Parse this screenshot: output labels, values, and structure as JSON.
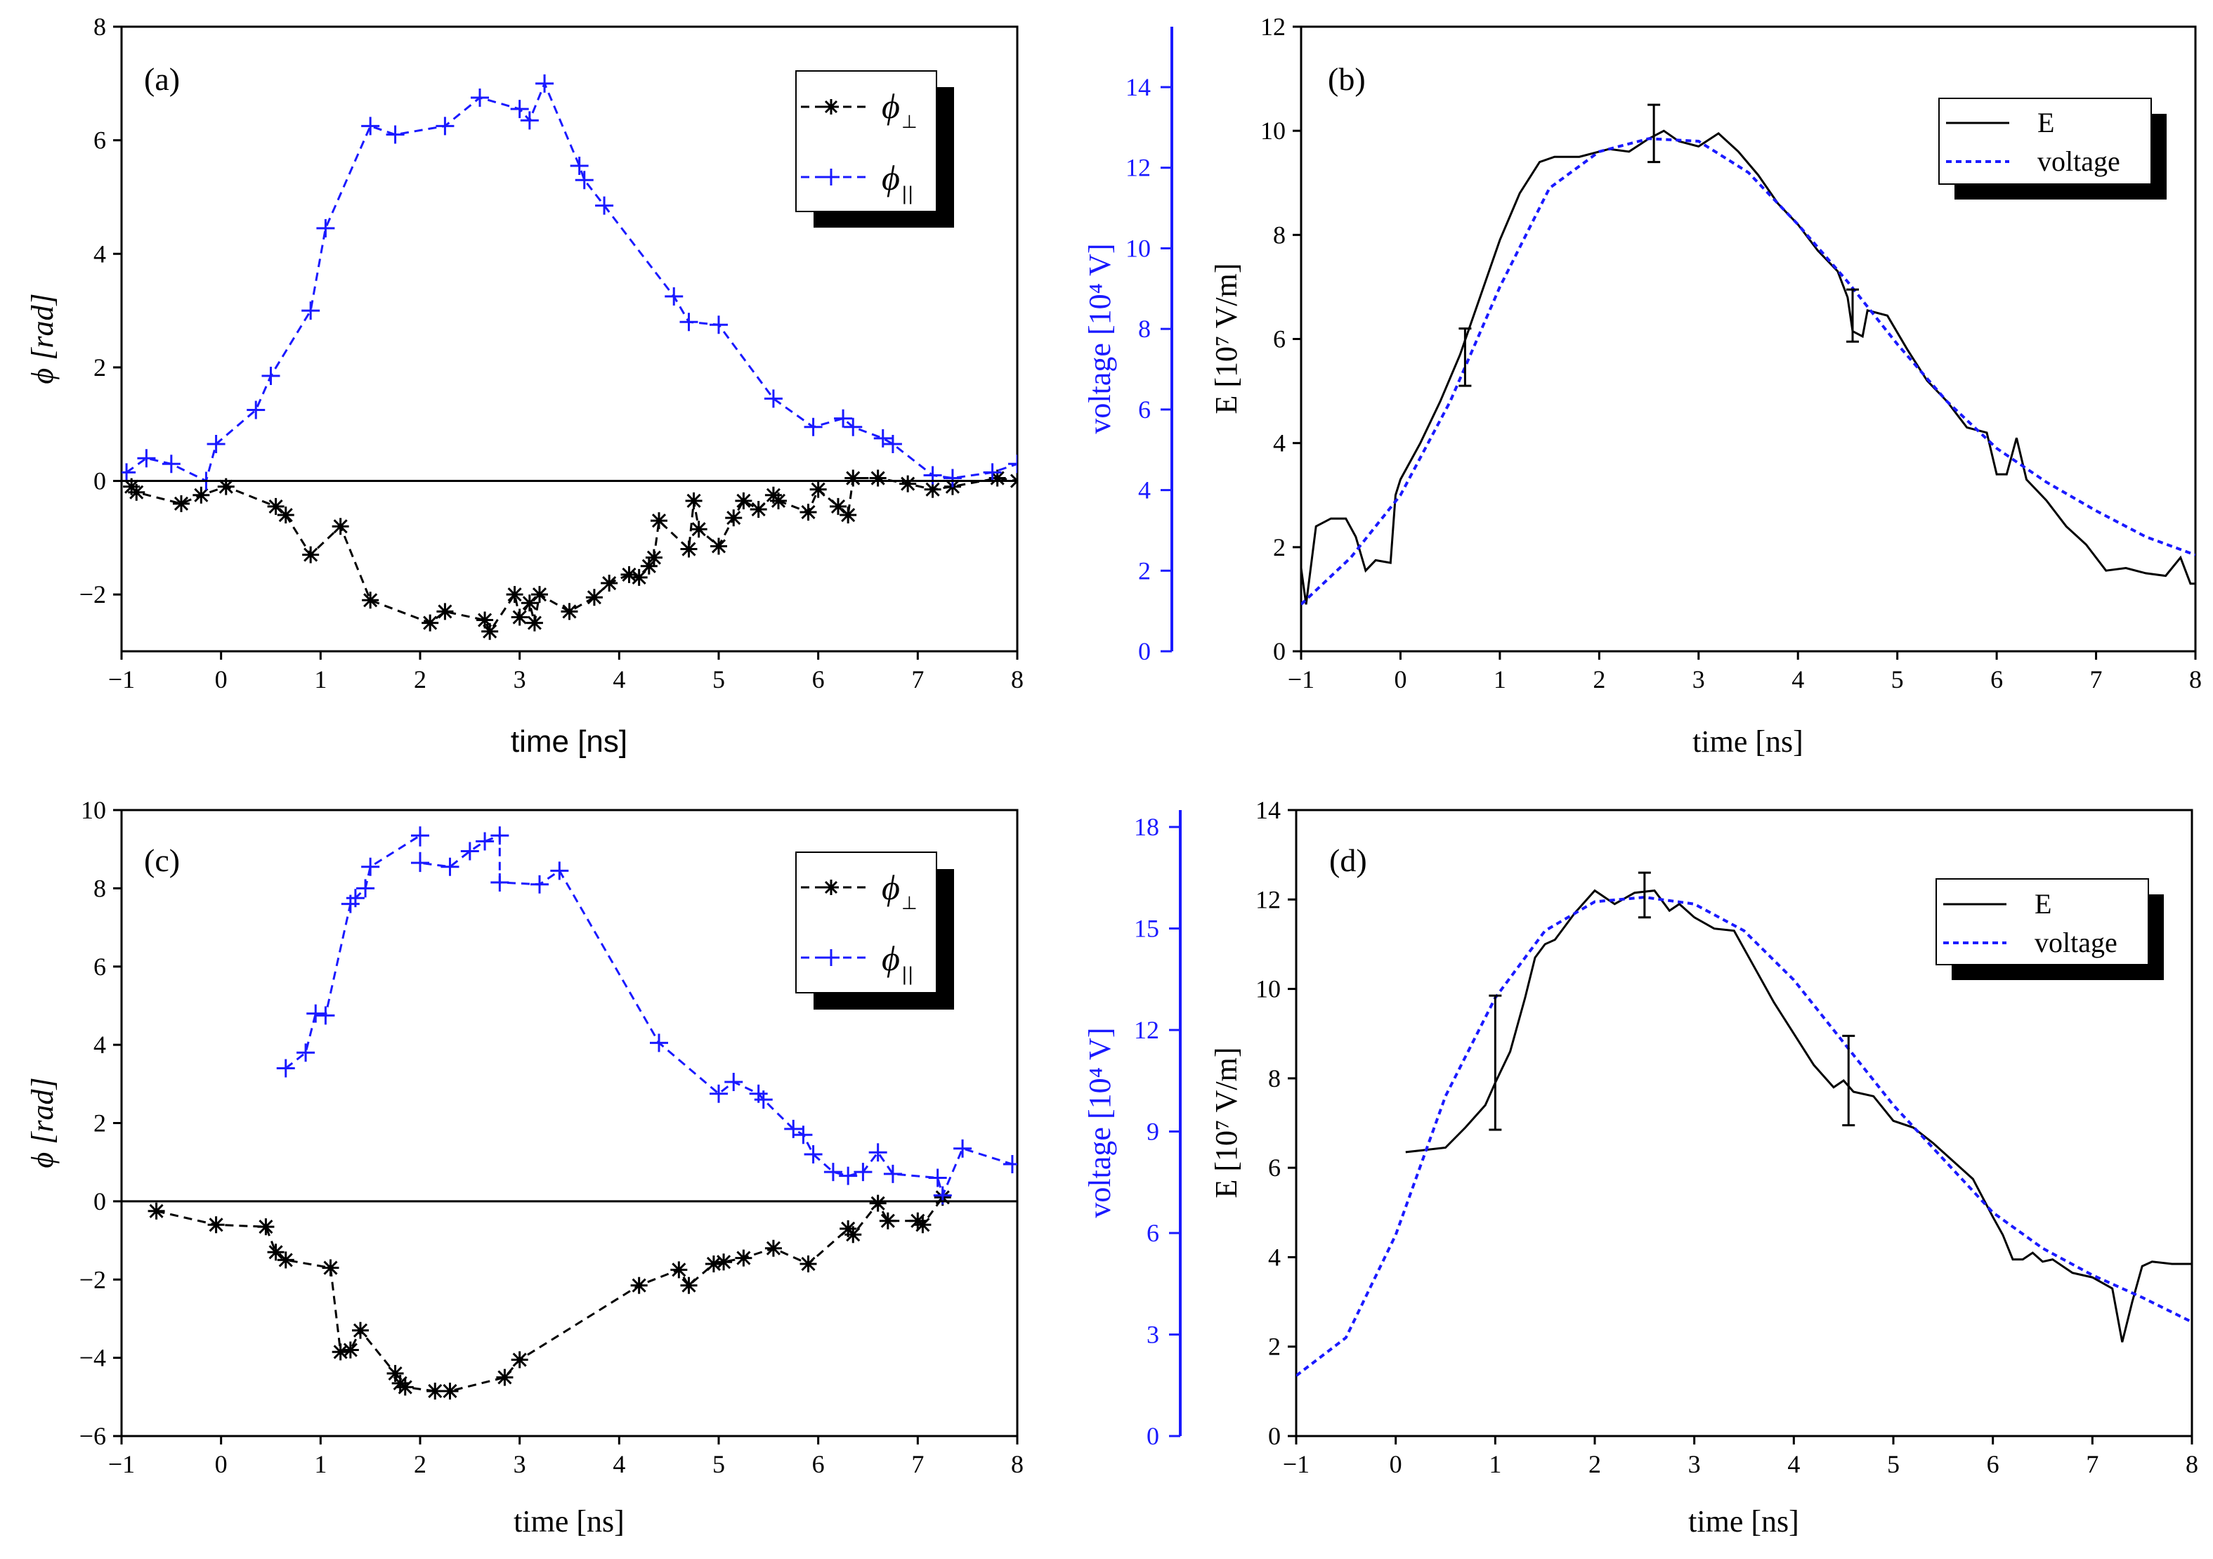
{
  "colors": {
    "black": "#000000",
    "blue": "#1a1aff"
  },
  "chart_data": [
    {
      "id": "a",
      "type": "scatter",
      "panel_label": "(a)",
      "xlabel": "time [ns]",
      "ylabel": "ϕ [rad]",
      "xlim": [
        -1,
        8
      ],
      "ylim": [
        -3,
        8
      ],
      "xticks": [
        -1,
        0,
        1,
        2,
        3,
        4,
        5,
        6,
        7,
        8
      ],
      "yticks": [
        -2,
        0,
        2,
        4,
        6,
        8
      ],
      "xtick_labels": [
        "−1",
        "0",
        "1",
        "2",
        "3",
        "4",
        "5",
        "6",
        "7",
        "8"
      ],
      "ytick_labels": [
        "−2",
        "0",
        "2",
        "4",
        "6",
        "8"
      ],
      "y2label": "voltage [10⁴ V]",
      "y2lim": [
        0,
        15.5
      ],
      "y2ticks": [
        0,
        2,
        4,
        6,
        8,
        10,
        12,
        14
      ],
      "y2tick_labels": [
        "0",
        "2",
        "4",
        "6",
        "8",
        "10",
        "12",
        "14"
      ],
      "legend": [
        {
          "symbol": "ϕ",
          "sub": "⊥",
          "marker": "star",
          "color": "#000000"
        },
        {
          "symbol": "ϕ",
          "sub": "||",
          "marker": "plus",
          "color": "#1a1aff"
        }
      ],
      "series": [
        {
          "name": "phi_perp",
          "color": "#000000",
          "marker": "star",
          "x": [
            -0.9,
            -0.85,
            -0.4,
            -0.2,
            0.05,
            0.55,
            0.65,
            0.9,
            1.2,
            1.5,
            2.1,
            2.25,
            2.65,
            2.7,
            2.95,
            3.0,
            3.1,
            3.15,
            3.2,
            3.5,
            3.75,
            3.9,
            4.1,
            4.2,
            4.3,
            4.35,
            4.4,
            4.7,
            4.75,
            4.8,
            5.0,
            5.15,
            5.25,
            5.4,
            5.55,
            5.6,
            5.9,
            6.0,
            6.2,
            6.3,
            6.35,
            6.6,
            6.9,
            7.15,
            7.35,
            7.8,
            8.0
          ],
          "y": [
            -0.1,
            -0.2,
            -0.4,
            -0.25,
            -0.1,
            -0.45,
            -0.6,
            -1.3,
            -0.8,
            -2.1,
            -2.5,
            -2.3,
            -2.45,
            -2.65,
            -2.0,
            -2.4,
            -2.15,
            -2.5,
            -2.0,
            -2.3,
            -2.05,
            -1.8,
            -1.65,
            -1.7,
            -1.5,
            -1.35,
            -0.7,
            -1.2,
            -0.35,
            -0.85,
            -1.15,
            -0.65,
            -0.35,
            -0.5,
            -0.25,
            -0.35,
            -0.55,
            -0.15,
            -0.45,
            -0.6,
            0.05,
            0.05,
            -0.05,
            -0.15,
            -0.1,
            0.05,
            0.0
          ]
        },
        {
          "name": "phi_par",
          "color": "#1a1aff",
          "marker": "plus",
          "x": [
            -0.95,
            -0.75,
            -0.5,
            -0.15,
            -0.05,
            0.35,
            0.5,
            0.9,
            1.05,
            1.5,
            1.75,
            2.25,
            2.6,
            3.0,
            3.1,
            3.25,
            3.6,
            3.65,
            3.85,
            4.55,
            4.7,
            5.0,
            5.55,
            5.95,
            6.25,
            6.35,
            6.65,
            6.75,
            7.15,
            7.35,
            7.75,
            8.0
          ],
          "y": [
            0.15,
            0.4,
            0.3,
            0.0,
            0.65,
            1.25,
            1.85,
            3.0,
            4.45,
            6.25,
            6.1,
            6.25,
            6.75,
            6.55,
            6.35,
            7.0,
            5.55,
            5.3,
            4.85,
            3.25,
            2.8,
            2.75,
            1.45,
            0.95,
            1.1,
            0.95,
            0.75,
            0.65,
            0.1,
            0.05,
            0.15,
            0.3
          ]
        },
        {
          "name": "zero_line",
          "color": "#000000",
          "x": [
            -1,
            8
          ],
          "y": [
            0,
            0
          ]
        }
      ]
    },
    {
      "id": "b",
      "type": "line",
      "panel_label": "(b)",
      "xlabel": "time [ns]",
      "ylabel": "E [10⁷ V/m]",
      "xlim": [
        -1,
        8
      ],
      "ylim": [
        0,
        12
      ],
      "xticks": [
        -1,
        0,
        1,
        2,
        3,
        4,
        5,
        6,
        7,
        8
      ],
      "yticks": [
        0,
        2,
        4,
        6,
        8,
        10,
        12
      ],
      "xtick_labels": [
        "−1",
        "0",
        "1",
        "2",
        "3",
        "4",
        "5",
        "6",
        "7",
        "8"
      ],
      "ytick_labels": [
        "0",
        "2",
        "4",
        "6",
        "8",
        "10",
        "12"
      ],
      "legend": [
        {
          "label": "E",
          "style": "solid",
          "color": "#000000"
        },
        {
          "label": "voltage",
          "style": "dotted",
          "color": "#1a1aff"
        }
      ],
      "series": [
        {
          "name": "E",
          "color": "#000000",
          "style": "solid",
          "x": [
            -1.0,
            -0.95,
            -0.85,
            -0.7,
            -0.55,
            -0.45,
            -0.35,
            -0.25,
            -0.1,
            -0.05,
            0.0,
            0.2,
            0.4,
            0.6,
            0.8,
            1.0,
            1.2,
            1.4,
            1.55,
            1.8,
            2.1,
            2.3,
            2.5,
            2.65,
            2.8,
            3.0,
            3.2,
            3.4,
            3.6,
            3.8,
            4.0,
            4.2,
            4.4,
            4.5,
            4.55,
            4.65,
            4.7,
            4.9,
            5.1,
            5.3,
            5.5,
            5.7,
            5.9,
            6.0,
            6.1,
            6.2,
            6.3,
            6.5,
            6.7,
            6.9,
            7.1,
            7.3,
            7.5,
            7.7,
            7.85,
            7.95,
            8.0
          ],
          "y": [
            1.6,
            0.9,
            2.4,
            2.55,
            2.55,
            2.2,
            1.55,
            1.75,
            1.7,
            3.0,
            3.3,
            4.0,
            4.8,
            5.7,
            6.8,
            7.9,
            8.8,
            9.4,
            9.5,
            9.5,
            9.65,
            9.6,
            9.85,
            10.0,
            9.8,
            9.7,
            9.95,
            9.6,
            9.15,
            8.6,
            8.2,
            7.7,
            7.3,
            6.8,
            6.15,
            6.05,
            6.55,
            6.45,
            5.8,
            5.2,
            4.8,
            4.3,
            4.2,
            3.4,
            3.4,
            4.1,
            3.3,
            2.9,
            2.4,
            2.05,
            1.55,
            1.6,
            1.5,
            1.45,
            1.8,
            1.3,
            1.3
          ]
        },
        {
          "name": "voltage",
          "color": "#1a1aff",
          "style": "dotted",
          "x": [
            -1.0,
            -0.5,
            0.0,
            0.5,
            1.0,
            1.5,
            2.0,
            2.5,
            3.0,
            3.5,
            4.0,
            4.5,
            5.0,
            5.5,
            6.0,
            6.5,
            7.0,
            7.5,
            8.0
          ],
          "y": [
            0.9,
            1.8,
            3.0,
            4.8,
            7.0,
            8.9,
            9.6,
            9.85,
            9.8,
            9.2,
            8.2,
            7.1,
            5.9,
            4.8,
            3.9,
            3.25,
            2.7,
            2.2,
            1.85
          ]
        }
      ],
      "error_bars": [
        {
          "x": 0.65,
          "y": 5.65,
          "low": 5.1,
          "high": 6.2
        },
        {
          "x": 2.55,
          "y": 9.95,
          "low": 9.4,
          "high": 10.5
        },
        {
          "x": 4.55,
          "y": 6.45,
          "low": 5.95,
          "high": 6.95
        }
      ]
    },
    {
      "id": "c",
      "type": "scatter",
      "panel_label": "(c)",
      "xlabel": "time [ns]",
      "ylabel": "ϕ [rad]",
      "xlim": [
        -1,
        8
      ],
      "ylim": [
        -6,
        10
      ],
      "xticks": [
        -1,
        0,
        1,
        2,
        3,
        4,
        5,
        6,
        7,
        8
      ],
      "yticks": [
        -6,
        -4,
        -2,
        0,
        2,
        4,
        6,
        8,
        10
      ],
      "xtick_labels": [
        "−1",
        "0",
        "1",
        "2",
        "3",
        "4",
        "5",
        "6",
        "7",
        "8"
      ],
      "ytick_labels": [
        "−6",
        "−4",
        "−2",
        "0",
        "2",
        "4",
        "6",
        "8",
        "10"
      ],
      "y2label": "voltage [10⁴ V]",
      "y2lim": [
        0,
        18.5
      ],
      "y2ticks": [
        0,
        3,
        6,
        9,
        12,
        15,
        18
      ],
      "y2tick_labels": [
        "0",
        "3",
        "6",
        "9",
        "12",
        "15",
        "18"
      ],
      "legend": [
        {
          "symbol": "ϕ",
          "sub": "⊥",
          "marker": "star",
          "color": "#000000"
        },
        {
          "symbol": "ϕ",
          "sub": "||",
          "marker": "plus",
          "color": "#1a1aff"
        }
      ],
      "series": [
        {
          "name": "phi_perp",
          "color": "#000000",
          "marker": "star",
          "x": [
            -0.65,
            -0.05,
            0.45,
            0.55,
            0.65,
            1.1,
            1.2,
            1.3,
            1.4,
            1.75,
            1.8,
            1.85,
            2.15,
            2.3,
            2.85,
            3.0,
            4.2,
            4.6,
            4.7,
            4.95,
            5.05,
            5.25,
            5.55,
            5.9,
            6.3,
            6.35,
            6.6,
            6.7,
            7.0,
            7.05,
            7.25
          ],
          "y": [
            -0.25,
            -0.6,
            -0.65,
            -1.3,
            -1.5,
            -1.7,
            -3.85,
            -3.8,
            -3.3,
            -4.4,
            -4.65,
            -4.75,
            -4.85,
            -4.85,
            -4.5,
            -4.05,
            -2.15,
            -1.75,
            -2.15,
            -1.6,
            -1.55,
            -1.45,
            -1.2,
            -1.6,
            -0.7,
            -0.85,
            -0.05,
            -0.5,
            -0.5,
            -0.6,
            0.1
          ]
        },
        {
          "name": "phi_par",
          "color": "#1a1aff",
          "marker": "plus",
          "x": [
            0.65,
            0.85,
            0.95,
            1.05,
            1.3,
            1.35,
            1.45,
            1.5,
            2.0,
            2.0,
            2.3,
            2.5,
            2.65,
            2.8,
            2.8,
            3.2,
            3.4,
            4.4,
            5.0,
            5.15,
            5.4,
            5.45,
            5.75,
            5.85,
            5.95,
            6.15,
            6.3,
            6.45,
            6.6,
            6.75,
            7.2,
            7.25,
            7.45,
            7.95
          ],
          "y": [
            3.4,
            3.8,
            4.8,
            4.75,
            7.6,
            7.75,
            8.0,
            8.55,
            9.35,
            8.65,
            8.55,
            8.95,
            9.2,
            9.35,
            8.15,
            8.1,
            8.45,
            4.05,
            2.75,
            3.05,
            2.75,
            2.6,
            1.85,
            1.7,
            1.2,
            0.75,
            0.65,
            0.75,
            1.25,
            0.7,
            0.6,
            0.15,
            1.35,
            0.95
          ]
        },
        {
          "name": "zero_line",
          "color": "#000000",
          "x": [
            -1,
            8
          ],
          "y": [
            0,
            0
          ]
        }
      ]
    },
    {
      "id": "d",
      "type": "line",
      "panel_label": "(d)",
      "xlabel": "time [ns]",
      "ylabel": "E [10⁷ V/m]",
      "xlim": [
        -1,
        8
      ],
      "ylim": [
        0,
        14
      ],
      "xticks": [
        -1,
        0,
        1,
        2,
        3,
        4,
        5,
        6,
        7,
        8
      ],
      "yticks": [
        0,
        2,
        4,
        6,
        8,
        10,
        12,
        14
      ],
      "xtick_labels": [
        "−1",
        "0",
        "1",
        "2",
        "3",
        "4",
        "5",
        "6",
        "7",
        "8"
      ],
      "ytick_labels": [
        "0",
        "2",
        "4",
        "6",
        "8",
        "10",
        "12",
        "14"
      ],
      "legend": [
        {
          "label": "E",
          "style": "solid",
          "color": "#000000"
        },
        {
          "label": "voltage",
          "style": "dotted",
          "color": "#1a1aff"
        }
      ],
      "series": [
        {
          "name": "E",
          "color": "#000000",
          "style": "solid",
          "x": [
            0.1,
            0.3,
            0.5,
            0.7,
            0.9,
            1.0,
            1.15,
            1.3,
            1.4,
            1.5,
            1.6,
            1.8,
            2.0,
            2.2,
            2.4,
            2.6,
            2.75,
            2.85,
            3.0,
            3.2,
            3.4,
            3.6,
            3.8,
            4.0,
            4.2,
            4.4,
            4.5,
            4.6,
            4.8,
            5.0,
            5.2,
            5.4,
            5.6,
            5.8,
            6.0,
            6.1,
            6.2,
            6.3,
            6.4,
            6.5,
            6.6,
            6.8,
            7.0,
            7.2,
            7.3,
            7.4,
            7.5,
            7.6,
            7.8,
            8.0
          ],
          "y": [
            6.35,
            6.4,
            6.45,
            6.9,
            7.4,
            7.9,
            8.6,
            9.8,
            10.7,
            11.0,
            11.1,
            11.7,
            12.2,
            11.9,
            12.15,
            12.2,
            11.75,
            11.9,
            11.6,
            11.35,
            11.3,
            10.5,
            9.7,
            9.0,
            8.3,
            7.8,
            7.95,
            7.7,
            7.6,
            7.05,
            6.9,
            6.55,
            6.15,
            5.75,
            4.9,
            4.5,
            3.95,
            3.95,
            4.1,
            3.9,
            3.95,
            3.65,
            3.55,
            3.3,
            2.1,
            3.0,
            3.8,
            3.9,
            3.85,
            3.85
          ]
        },
        {
          "name": "voltage",
          "color": "#1a1aff",
          "style": "dotted",
          "x": [
            -1.0,
            -0.5,
            0.0,
            0.5,
            1.0,
            1.5,
            2.0,
            2.5,
            3.0,
            3.5,
            4.0,
            4.5,
            5.0,
            5.5,
            6.0,
            6.5,
            7.0,
            7.5,
            8.0
          ],
          "y": [
            1.35,
            2.2,
            4.5,
            7.6,
            9.8,
            11.3,
            11.95,
            12.05,
            11.9,
            11.3,
            10.2,
            8.8,
            7.4,
            6.2,
            5.0,
            4.2,
            3.6,
            3.1,
            2.55
          ]
        }
      ],
      "error_bars": [
        {
          "x": 1.0,
          "y": 8.35,
          "low": 6.85,
          "high": 9.85
        },
        {
          "x": 2.5,
          "y": 12.1,
          "low": 11.6,
          "high": 12.6
        },
        {
          "x": 4.55,
          "y": 7.95,
          "low": 6.95,
          "high": 8.95
        }
      ]
    }
  ]
}
